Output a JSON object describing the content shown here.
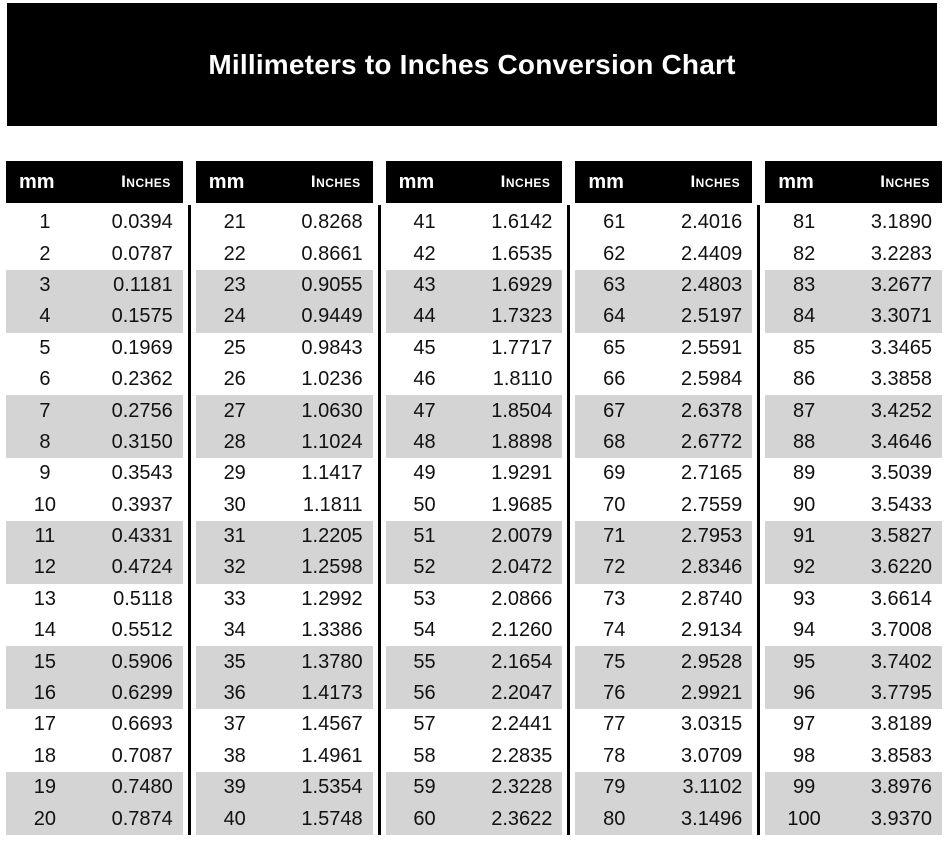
{
  "title": "Millimeters to Inches Conversion Chart",
  "colors": {
    "banner_bg": "#000000",
    "banner_text": "#ffffff",
    "column_header_bg": "#000000",
    "column_header_text": "#ffffff",
    "row_stripe": "#d4d4d4",
    "body_text": "#111111"
  },
  "table": {
    "columns": {
      "mm": "mm",
      "inches": "Inches"
    },
    "groups": [
      {
        "rows": [
          [
            "1",
            "0.0394"
          ],
          [
            "2",
            "0.0787"
          ],
          [
            "3",
            "0.1181"
          ],
          [
            "4",
            "0.1575"
          ],
          [
            "5",
            "0.1969"
          ],
          [
            "6",
            "0.2362"
          ],
          [
            "7",
            "0.2756"
          ],
          [
            "8",
            "0.3150"
          ],
          [
            "9",
            "0.3543"
          ],
          [
            "10",
            "0.3937"
          ],
          [
            "11",
            "0.4331"
          ],
          [
            "12",
            "0.4724"
          ],
          [
            "13",
            "0.5118"
          ],
          [
            "14",
            "0.5512"
          ],
          [
            "15",
            "0.5906"
          ],
          [
            "16",
            "0.6299"
          ],
          [
            "17",
            "0.6693"
          ],
          [
            "18",
            "0.7087"
          ],
          [
            "19",
            "0.7480"
          ],
          [
            "20",
            "0.7874"
          ]
        ]
      },
      {
        "rows": [
          [
            "21",
            "0.8268"
          ],
          [
            "22",
            "0.8661"
          ],
          [
            "23",
            "0.9055"
          ],
          [
            "24",
            "0.9449"
          ],
          [
            "25",
            "0.9843"
          ],
          [
            "26",
            "1.0236"
          ],
          [
            "27",
            "1.0630"
          ],
          [
            "28",
            "1.1024"
          ],
          [
            "29",
            "1.1417"
          ],
          [
            "30",
            "1.1811"
          ],
          [
            "31",
            "1.2205"
          ],
          [
            "32",
            "1.2598"
          ],
          [
            "33",
            "1.2992"
          ],
          [
            "34",
            "1.3386"
          ],
          [
            "35",
            "1.3780"
          ],
          [
            "36",
            "1.4173"
          ],
          [
            "37",
            "1.4567"
          ],
          [
            "38",
            "1.4961"
          ],
          [
            "39",
            "1.5354"
          ],
          [
            "40",
            "1.5748"
          ]
        ]
      },
      {
        "rows": [
          [
            "41",
            "1.6142"
          ],
          [
            "42",
            "1.6535"
          ],
          [
            "43",
            "1.6929"
          ],
          [
            "44",
            "1.7323"
          ],
          [
            "45",
            "1.7717"
          ],
          [
            "46",
            "1.8110"
          ],
          [
            "47",
            "1.8504"
          ],
          [
            "48",
            "1.8898"
          ],
          [
            "49",
            "1.9291"
          ],
          [
            "50",
            "1.9685"
          ],
          [
            "51",
            "2.0079"
          ],
          [
            "52",
            "2.0472"
          ],
          [
            "53",
            "2.0866"
          ],
          [
            "54",
            "2.1260"
          ],
          [
            "55",
            "2.1654"
          ],
          [
            "56",
            "2.2047"
          ],
          [
            "57",
            "2.2441"
          ],
          [
            "58",
            "2.2835"
          ],
          [
            "59",
            "2.3228"
          ],
          [
            "60",
            "2.3622"
          ]
        ]
      },
      {
        "rows": [
          [
            "61",
            "2.4016"
          ],
          [
            "62",
            "2.4409"
          ],
          [
            "63",
            "2.4803"
          ],
          [
            "64",
            "2.5197"
          ],
          [
            "65",
            "2.5591"
          ],
          [
            "66",
            "2.5984"
          ],
          [
            "67",
            "2.6378"
          ],
          [
            "68",
            "2.6772"
          ],
          [
            "69",
            "2.7165"
          ],
          [
            "70",
            "2.7559"
          ],
          [
            "71",
            "2.7953"
          ],
          [
            "72",
            "2.8346"
          ],
          [
            "73",
            "2.8740"
          ],
          [
            "74",
            "2.9134"
          ],
          [
            "75",
            "2.9528"
          ],
          [
            "76",
            "2.9921"
          ],
          [
            "77",
            "3.0315"
          ],
          [
            "78",
            "3.0709"
          ],
          [
            "79",
            "3.1102"
          ],
          [
            "80",
            "3.1496"
          ]
        ]
      },
      {
        "rows": [
          [
            "81",
            "3.1890"
          ],
          [
            "82",
            "3.2283"
          ],
          [
            "83",
            "3.2677"
          ],
          [
            "84",
            "3.3071"
          ],
          [
            "85",
            "3.3465"
          ],
          [
            "86",
            "3.3858"
          ],
          [
            "87",
            "3.4252"
          ],
          [
            "88",
            "3.4646"
          ],
          [
            "89",
            "3.5039"
          ],
          [
            "90",
            "3.5433"
          ],
          [
            "91",
            "3.5827"
          ],
          [
            "92",
            "3.6220"
          ],
          [
            "93",
            "3.6614"
          ],
          [
            "94",
            "3.7008"
          ],
          [
            "95",
            "3.7402"
          ],
          [
            "96",
            "3.7795"
          ],
          [
            "97",
            "3.8189"
          ],
          [
            "98",
            "3.8583"
          ],
          [
            "99",
            "3.8976"
          ],
          [
            "100",
            "3.9370"
          ]
        ]
      }
    ]
  }
}
